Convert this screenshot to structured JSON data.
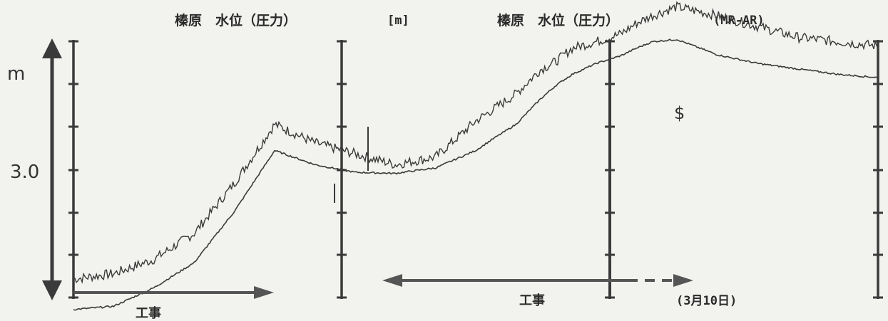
{
  "titles": {
    "left": "榛原　水位（圧力）",
    "unit": "[m]",
    "right": "榛原　水位（圧力）",
    "right_code": "(MR-AR)"
  },
  "labels": {
    "y_unit": "m",
    "y_value": "3.0",
    "construction_1": "工事",
    "construction_2": "工事",
    "date": "(3月10日)",
    "marker": "$"
  },
  "colors": {
    "line": "#3a3a3a",
    "axis": "#3a3a3a",
    "background": "#f2f2ef"
  },
  "chart_data": {
    "type": "line",
    "ylabel": "m",
    "y_tick_labels": [
      "3.0"
    ],
    "series": [
      {
        "x": [
          0,
          5,
          10,
          15,
          20,
          25,
          30,
          35,
          40,
          45,
          50,
          52,
          55,
          58,
          60,
          62,
          65,
          68,
          70,
          72,
          75,
          80,
          85,
          90,
          95,
          100
        ],
        "values": [
          2.0,
          2.05,
          2.18,
          2.42,
          2.88,
          3.42,
          3.25,
          3.15,
          3.05,
          3.12,
          3.45,
          3.55,
          3.7,
          3.92,
          4.0,
          4.12,
          4.18,
          4.25,
          4.35,
          4.42,
          4.5,
          4.42,
          4.32,
          4.22,
          4.18,
          4.14
        ]
      },
      {
        "x": [
          0,
          5,
          10,
          15,
          20,
          25,
          30,
          35,
          40,
          45,
          50,
          52,
          55,
          58,
          60,
          62,
          65,
          68,
          70,
          72,
          75,
          80,
          85,
          90,
          95,
          100
        ],
        "values": [
          1.72,
          1.75,
          1.92,
          2.15,
          2.62,
          3.18,
          3.05,
          2.98,
          2.97,
          3.02,
          3.18,
          3.28,
          3.42,
          3.65,
          3.78,
          3.88,
          3.98,
          4.05,
          4.12,
          4.18,
          4.2,
          4.06,
          3.98,
          3.93,
          3.88,
          3.85
        ]
      }
    ]
  }
}
